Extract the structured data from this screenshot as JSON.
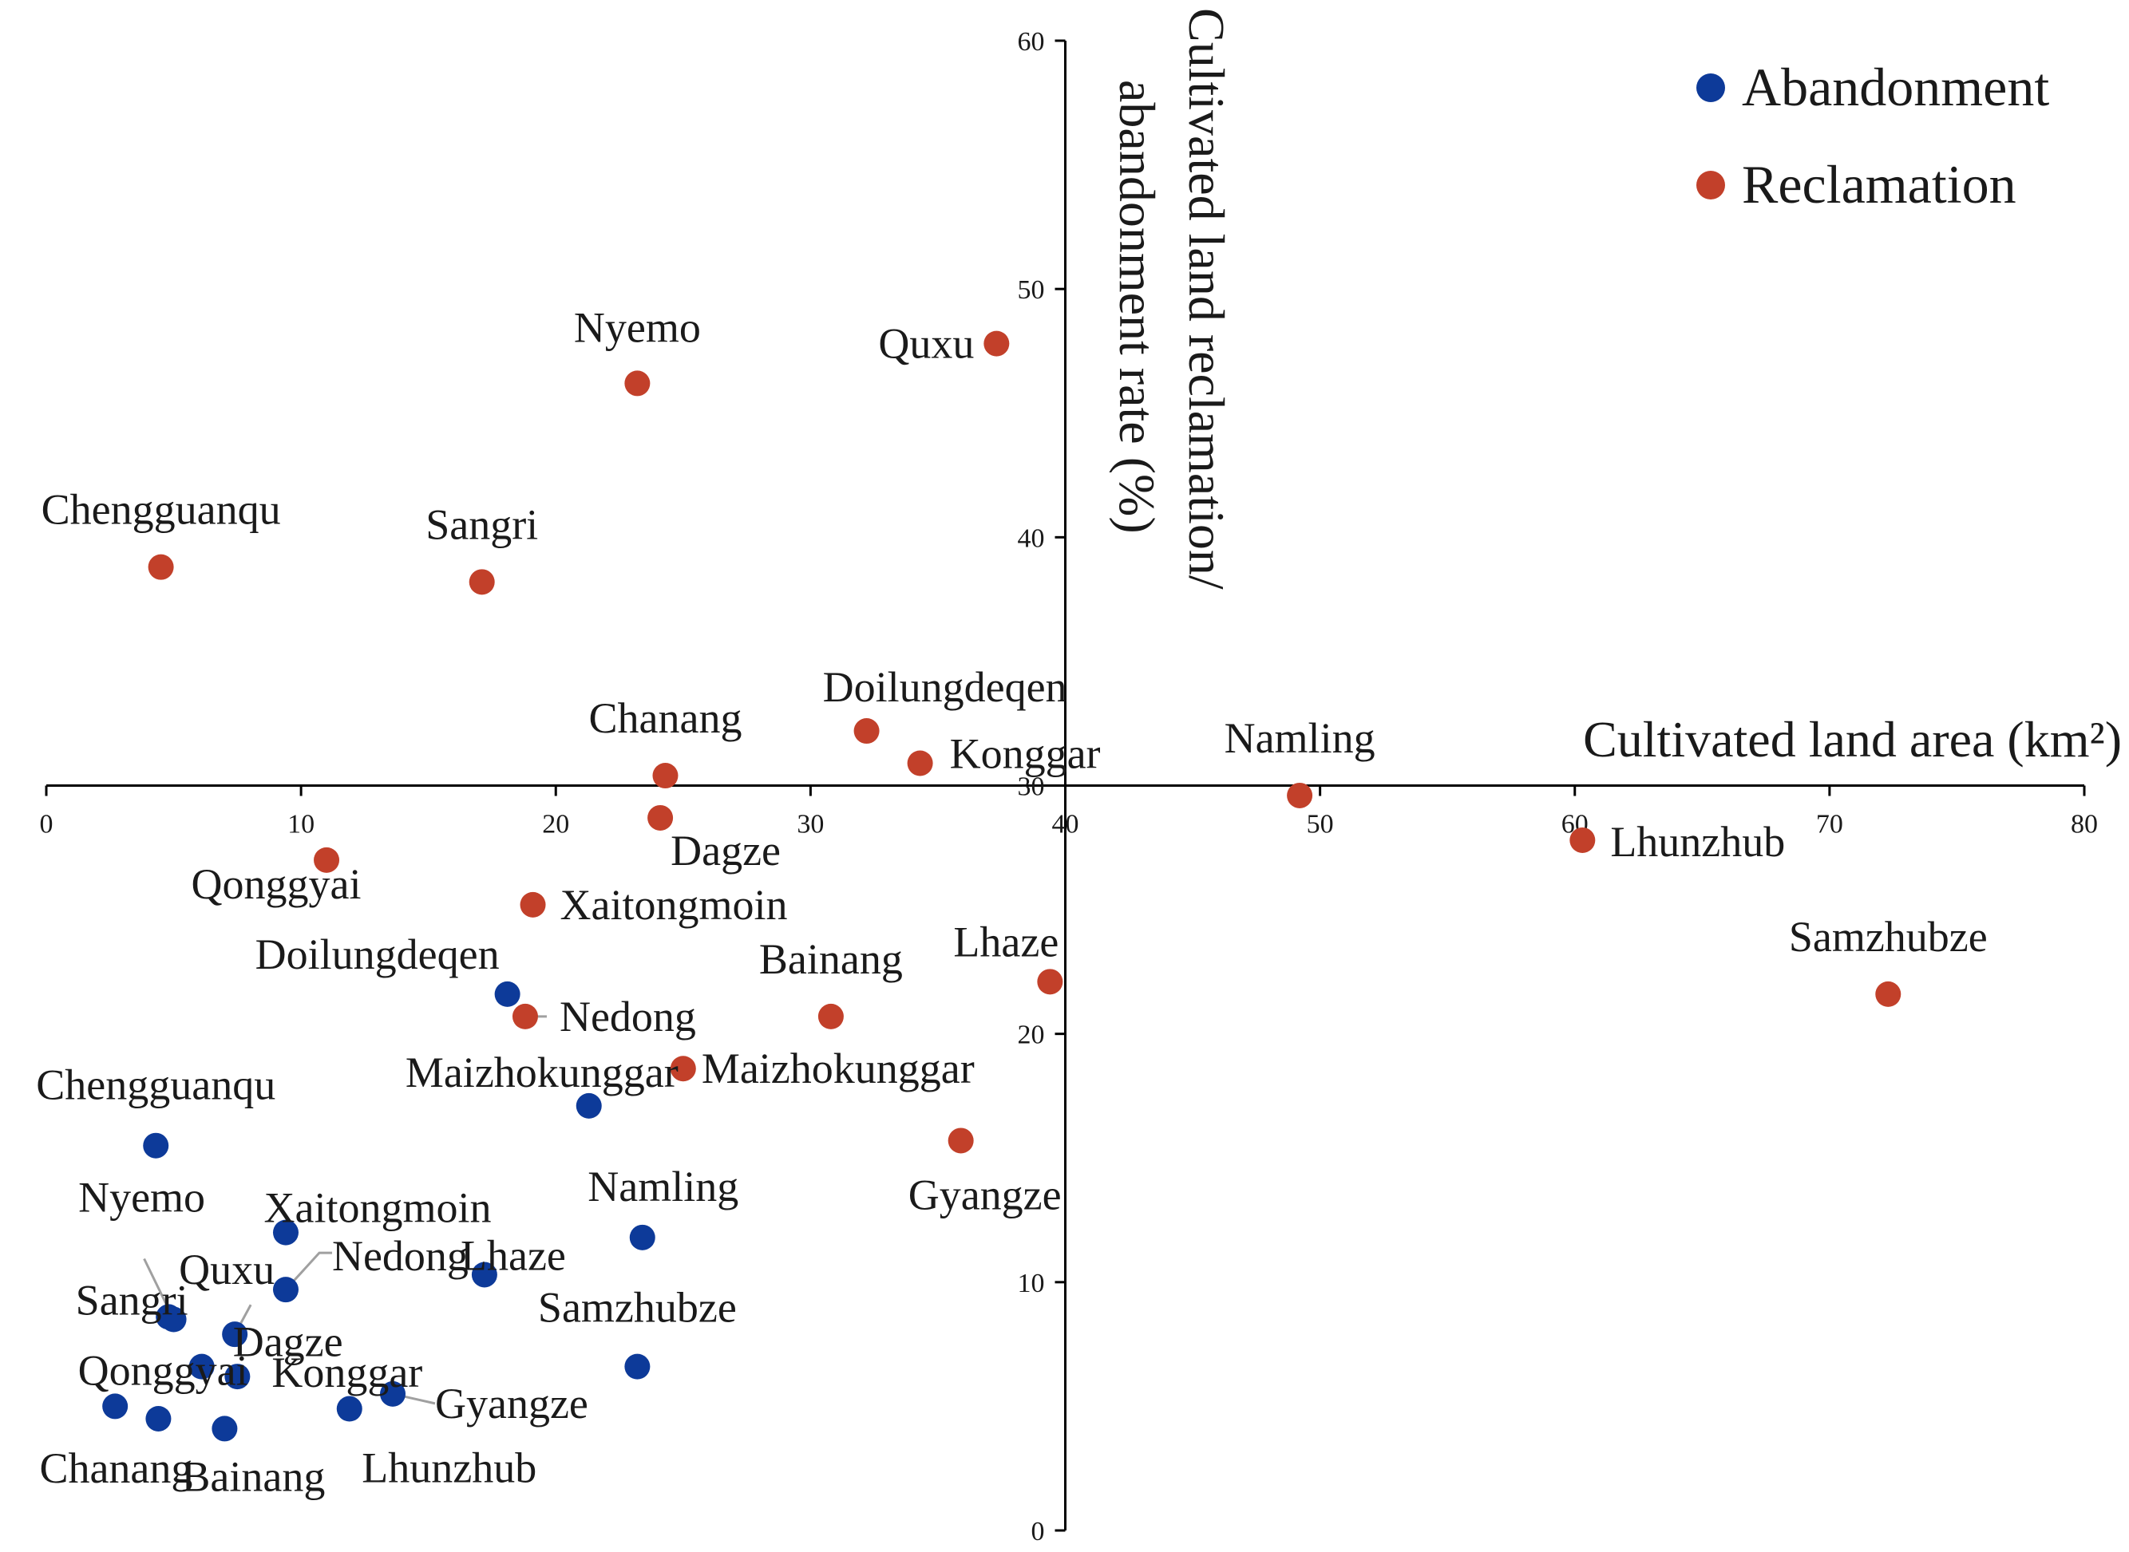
{
  "chart_data": {
    "type": "scatter",
    "x_axis": {
      "title": "Cultivated land area (km²)",
      "range": [
        0,
        80
      ],
      "ticks": [
        "0",
        "10",
        "20",
        "30",
        "40",
        "50",
        "60",
        "70",
        "80"
      ],
      "crosses_y_at": 30
    },
    "y_axis": {
      "title_line1": "Cultivated land reclamation/",
      "title_line2": "abandonment rate (%)",
      "range": [
        0,
        60
      ],
      "ticks": [
        "0",
        "10",
        "20",
        "30",
        "40",
        "50",
        "60"
      ],
      "crosses_x_at": 40
    },
    "legend": {
      "position": "top-right",
      "items": [
        {
          "name": "Abandonment",
          "color": "#0d3a99"
        },
        {
          "name": "Reclamation",
          "color": "#c2402a"
        }
      ]
    },
    "series": [
      {
        "name": "Abandonment",
        "color": "#0d3a99",
        "points": [
          {
            "label": "Doilungdeqen",
            "x": 18.1,
            "y": 21.6
          },
          {
            "label": "Maizhokunggar",
            "x": 21.3,
            "y": 17.1
          },
          {
            "label": "Chengguanqu",
            "x": 4.3,
            "y": 15.5
          },
          {
            "label": "Namling",
            "x": 23.4,
            "y": 11.8
          },
          {
            "label": "Xaitongmoin",
            "x": 9.4,
            "y": 12.0
          },
          {
            "label": "Lhaze",
            "x": 17.2,
            "y": 10.3
          },
          {
            "label": "Nedong",
            "x": 9.4,
            "y": 9.7
          },
          {
            "label": "Nyemo",
            "x": 5.0,
            "y": 8.5
          },
          {
            "label": "Sangri",
            "x": 4.8,
            "y": 8.6
          },
          {
            "label": "Quxu",
            "x": 7.4,
            "y": 7.9
          },
          {
            "label": "Dagze",
            "x": 6.1,
            "y": 6.6
          },
          {
            "label": "Samzhubze",
            "x": 23.2,
            "y": 6.6
          },
          {
            "label": "Konggar",
            "x": 7.5,
            "y": 6.2
          },
          {
            "label": "Gyangze",
            "x": 13.6,
            "y": 5.5
          },
          {
            "label": "Qonggyai",
            "x": 2.7,
            "y": 5.0
          },
          {
            "label": "Lhunzhub",
            "x": 11.9,
            "y": 4.9
          },
          {
            "label": "Chanang",
            "x": 4.4,
            "y": 4.5
          },
          {
            "label": "Bainang",
            "x": 7.0,
            "y": 4.1
          }
        ]
      },
      {
        "name": "Reclamation",
        "color": "#c2402a",
        "points": [
          {
            "label": "Quxu",
            "x": 37.3,
            "y": 47.8
          },
          {
            "label": "Nyemo",
            "x": 23.2,
            "y": 46.2
          },
          {
            "label": "Chengguanqu",
            "x": 4.5,
            "y": 38.8
          },
          {
            "label": "Sangri",
            "x": 17.1,
            "y": 38.2
          },
          {
            "label": "Doilungdeqen",
            "x": 32.2,
            "y": 32.2
          },
          {
            "label": "Konggar",
            "x": 34.3,
            "y": 30.9
          },
          {
            "label": "Chanang",
            "x": 24.3,
            "y": 30.4
          },
          {
            "label": "Namling",
            "x": 49.2,
            "y": 29.6
          },
          {
            "label": "Dagze",
            "x": 24.1,
            "y": 28.7
          },
          {
            "label": "Lhunzhub",
            "x": 60.3,
            "y": 27.8
          },
          {
            "label": "Qonggyai",
            "x": 11.0,
            "y": 27.0
          },
          {
            "label": "Xaitongmoin",
            "x": 19.1,
            "y": 25.2
          },
          {
            "label": "Lhaze",
            "x": 39.4,
            "y": 22.1
          },
          {
            "label": "Samzhubze",
            "x": 72.3,
            "y": 21.6
          },
          {
            "label": "Nedong",
            "x": 18.8,
            "y": 20.7
          },
          {
            "label": "Bainang",
            "x": 30.8,
            "y": 20.7
          },
          {
            "label": "Maizhokunggar",
            "x": 25.0,
            "y": 18.6
          },
          {
            "label": "Gyangze",
            "x": 35.9,
            "y": 15.7
          }
        ]
      }
    ]
  }
}
